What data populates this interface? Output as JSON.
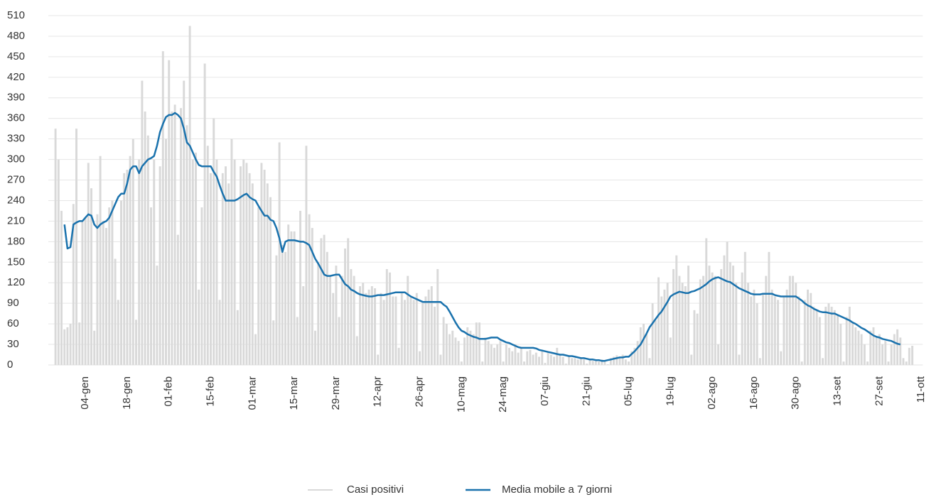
{
  "chart_data": {
    "type": "bar",
    "categories": [
      null,
      null,
      null,
      null,
      null,
      null,
      null,
      null,
      null,
      null,
      "04-gen",
      null,
      null,
      null,
      null,
      null,
      null,
      null,
      null,
      null,
      null,
      null,
      null,
      null,
      "18-gen",
      null,
      null,
      null,
      null,
      null,
      null,
      null,
      null,
      null,
      null,
      null,
      null,
      null,
      "01-feb",
      null,
      null,
      null,
      null,
      null,
      null,
      null,
      null,
      null,
      null,
      null,
      null,
      null,
      "15-feb",
      null,
      null,
      null,
      null,
      null,
      null,
      null,
      null,
      null,
      null,
      null,
      null,
      null,
      "01-mar",
      null,
      null,
      null,
      null,
      null,
      null,
      null,
      null,
      null,
      null,
      null,
      null,
      null,
      "15-mar",
      null,
      null,
      null,
      null,
      null,
      null,
      null,
      null,
      null,
      null,
      null,
      null,
      null,
      "29-mar",
      null,
      null,
      null,
      null,
      null,
      null,
      null,
      null,
      null,
      null,
      null,
      null,
      null,
      "12-apr",
      null,
      null,
      null,
      null,
      null,
      null,
      null,
      null,
      null,
      null,
      null,
      null,
      null,
      "26-apr",
      null,
      null,
      null,
      null,
      null,
      null,
      null,
      null,
      null,
      null,
      null,
      null,
      null,
      "10-mag",
      null,
      null,
      null,
      null,
      null,
      null,
      null,
      null,
      null,
      null,
      null,
      null,
      null,
      "24-mag",
      null,
      null,
      null,
      null,
      null,
      null,
      null,
      null,
      null,
      null,
      null,
      null,
      null,
      "07-giu",
      null,
      null,
      null,
      null,
      null,
      null,
      null,
      null,
      null,
      null,
      null,
      null,
      null,
      "21-giu",
      null,
      null,
      null,
      null,
      null,
      null,
      null,
      null,
      null,
      null,
      null,
      null,
      null,
      "05-lug",
      null,
      null,
      null,
      null,
      null,
      null,
      null,
      null,
      null,
      null,
      null,
      null,
      null,
      "19-lug",
      null,
      null,
      null,
      null,
      null,
      null,
      null,
      null,
      null,
      null,
      null,
      null,
      null,
      "02-ago",
      null,
      null,
      null,
      null,
      null,
      null,
      null,
      null,
      null,
      null,
      null,
      null,
      null,
      "16-ago",
      null,
      null,
      null,
      null,
      null,
      null,
      null,
      null,
      null,
      null,
      null,
      null,
      null,
      "30-ago",
      null,
      null,
      null,
      null,
      null,
      null,
      null,
      null,
      null,
      null,
      null,
      null,
      null,
      "13-set",
      null,
      null,
      null,
      null,
      null,
      null,
      null,
      null,
      null,
      null,
      null,
      null,
      null,
      "27-set",
      null,
      null,
      null,
      null,
      null,
      null,
      null,
      null,
      null,
      null,
      null,
      null,
      null,
      "11-ott"
    ],
    "series": [
      {
        "name": "Casi positivi",
        "type": "bar",
        "color": "#d9d9d9",
        "values": [
          345,
          300,
          225,
          52,
          55,
          60,
          235,
          345,
          62,
          210,
          215,
          295,
          258,
          50,
          220,
          305,
          210,
          200,
          230,
          240,
          155,
          95,
          240,
          280,
          285,
          305,
          330,
          66,
          300,
          415,
          370,
          335,
          230,
          300,
          145,
          290,
          458,
          330,
          445,
          370,
          380,
          190,
          375,
          415,
          350,
          495,
          300,
          310,
          110,
          230,
          440,
          320,
          280,
          360,
          300,
          95,
          280,
          290,
          265,
          330,
          300,
          80,
          290,
          300,
          295,
          280,
          265,
          45,
          230,
          295,
          285,
          265,
          245,
          65,
          160,
          325,
          175,
          165,
          205,
          195,
          195,
          70,
          225,
          115,
          320,
          220,
          200,
          50,
          150,
          185,
          190,
          165,
          130,
          105,
          145,
          70,
          130,
          170,
          185,
          140,
          130,
          42,
          115,
          120,
          105,
          110,
          115,
          112,
          15,
          105,
          95,
          140,
          135,
          100,
          100,
          25,
          105,
          95,
          130,
          100,
          95,
          105,
          20,
          90,
          100,
          110,
          115,
          85,
          140,
          15,
          70,
          60,
          45,
          50,
          40,
          35,
          5,
          40,
          55,
          50,
          45,
          62,
          62,
          5,
          40,
          35,
          30,
          25,
          30,
          35,
          5,
          30,
          25,
          20,
          30,
          18,
          25,
          5,
          20,
          22,
          15,
          18,
          12,
          20,
          3,
          18,
          15,
          12,
          25,
          15,
          12,
          2,
          12,
          10,
          10,
          8,
          10,
          8,
          2,
          8,
          6,
          6,
          5,
          8,
          6,
          1,
          10,
          12,
          14,
          10,
          15,
          8,
          5,
          20,
          25,
          35,
          55,
          60,
          45,
          10,
          90,
          65,
          128,
          100,
          110,
          120,
          40,
          140,
          160,
          130,
          120,
          115,
          145,
          15,
          80,
          75,
          125,
          130,
          185,
          145,
          135,
          130,
          30,
          140,
          160,
          180,
          150,
          145,
          120,
          15,
          135,
          165,
          120,
          100,
          110,
          90,
          10,
          105,
          130,
          165,
          110,
          100,
          95,
          20,
          100,
          110,
          130,
          130,
          120,
          100,
          5,
          95,
          110,
          105,
          85,
          80,
          70,
          10,
          85,
          90,
          85,
          80,
          72,
          60,
          5,
          70,
          85,
          60,
          55,
          50,
          45,
          30,
          5,
          50,
          55,
          40,
          45,
          30,
          35,
          5,
          30,
          45,
          52,
          40,
          10,
          5,
          25,
          28,
          null,
          null,
          null
        ]
      },
      {
        "name": "Media mobile a 7 giorni",
        "type": "line",
        "color": "#1a72ad",
        "values": [
          null,
          null,
          null,
          205,
          170,
          172,
          205,
          208,
          210,
          210,
          215,
          220,
          218,
          205,
          200,
          205,
          208,
          210,
          215,
          225,
          235,
          245,
          250,
          250,
          265,
          285,
          290,
          290,
          280,
          290,
          295,
          300,
          302,
          305,
          320,
          340,
          352,
          362,
          365,
          365,
          368,
          365,
          360,
          345,
          325,
          320,
          310,
          300,
          292,
          290,
          290,
          290,
          290,
          282,
          275,
          262,
          250,
          240,
          240,
          240,
          240,
          242,
          245,
          248,
          250,
          245,
          242,
          240,
          232,
          225,
          218,
          218,
          212,
          210,
          200,
          185,
          165,
          180,
          182,
          182,
          182,
          181,
          180,
          180,
          178,
          175,
          165,
          155,
          148,
          140,
          132,
          130,
          130,
          131,
          132,
          132,
          125,
          118,
          115,
          110,
          108,
          105,
          103,
          102,
          101,
          100,
          100,
          101,
          102,
          102,
          102,
          103,
          104,
          105,
          106,
          106,
          106,
          106,
          103,
          100,
          98,
          96,
          94,
          92,
          92,
          92,
          92,
          92,
          92,
          92,
          88,
          85,
          78,
          70,
          62,
          55,
          50,
          48,
          45,
          43,
          41,
          40,
          38,
          38,
          38,
          39,
          40,
          40,
          40,
          37,
          35,
          33,
          32,
          30,
          28,
          26,
          25,
          25,
          25,
          25,
          25,
          24,
          22,
          21,
          20,
          19,
          18,
          17,
          16,
          15,
          15,
          14,
          13,
          13,
          12,
          11,
          10,
          10,
          9,
          8,
          8,
          7,
          7,
          6,
          6,
          7,
          8,
          9,
          10,
          11,
          11,
          12,
          12,
          16,
          20,
          25,
          30,
          38,
          46,
          55,
          61,
          67,
          73,
          78,
          85,
          92,
          100,
          103,
          105,
          107,
          106,
          105,
          105,
          107,
          108,
          110,
          112,
          115,
          118,
          122,
          125,
          127,
          128,
          126,
          124,
          122,
          121,
          118,
          115,
          112,
          110,
          108,
          106,
          104,
          103,
          103,
          103,
          104,
          104,
          104,
          104,
          102,
          101,
          100,
          100,
          100,
          100,
          100,
          100,
          97,
          94,
          90,
          87,
          85,
          82,
          80,
          78,
          77,
          77,
          76,
          75,
          75,
          73,
          71,
          69,
          67,
          65,
          62,
          60,
          57,
          54,
          52,
          49,
          46,
          43,
          41,
          40,
          38,
          37,
          36,
          35,
          33,
          31,
          30,
          null,
          null,
          null,
          null,
          null,
          null,
          null
        ]
      }
    ],
    "ylim": [
      0,
      510
    ],
    "yticks": [
      0,
      30,
      60,
      90,
      120,
      150,
      180,
      210,
      240,
      270,
      300,
      330,
      360,
      390,
      420,
      450,
      480,
      510
    ],
    "grid": true,
    "legend": "bottom"
  }
}
